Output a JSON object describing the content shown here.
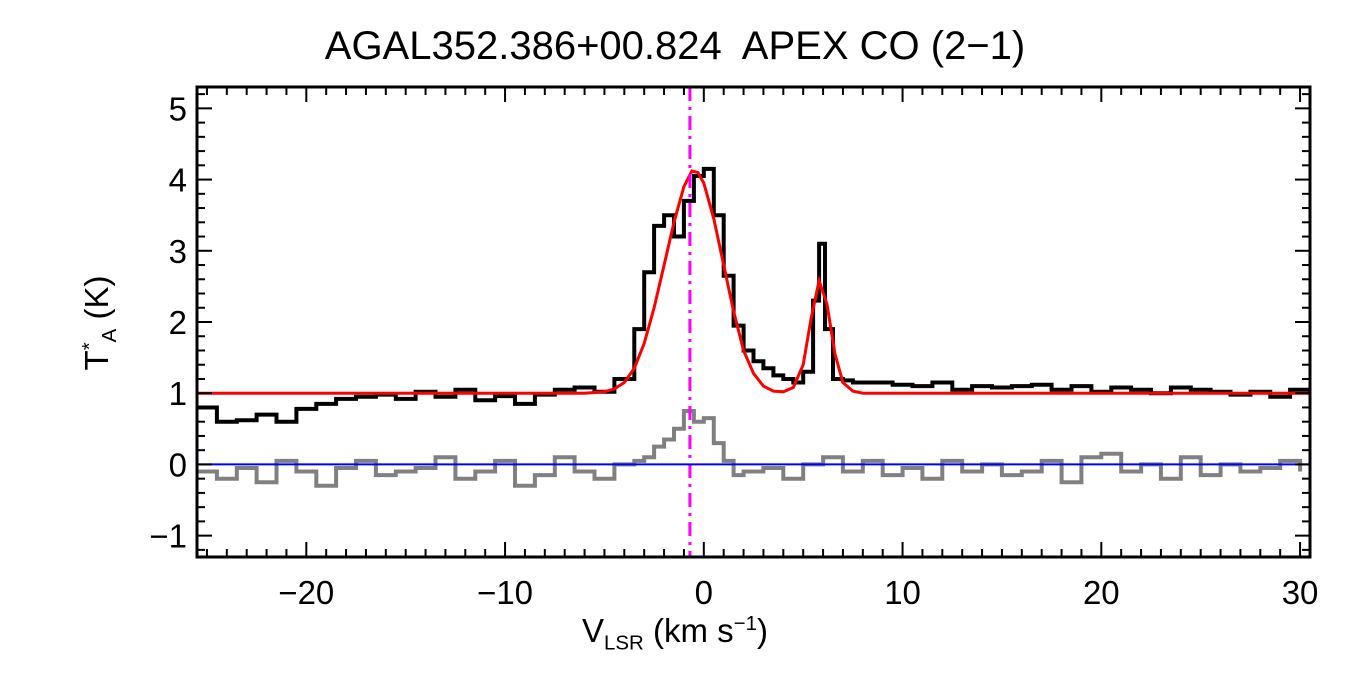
{
  "chart_data": {
    "type": "line",
    "title": "AGAL352.386+00.824  APEX CO (2−1)",
    "xlabel": {
      "main": "V",
      "sub": "LSR",
      "unit": " (km s",
      "sup": "−1",
      "close": ")"
    },
    "ylabel": {
      "main": "T",
      "sup": "*",
      "sub": "A",
      "unit": " (K)"
    },
    "xlim": [
      -25.5,
      30.5
    ],
    "ylim": [
      -1.3,
      5.3
    ],
    "xticks": [
      {
        "v": -20,
        "label": "−20"
      },
      {
        "v": -10,
        "label": "−10"
      },
      {
        "v": 0,
        "label": "0"
      },
      {
        "v": 10,
        "label": "10"
      },
      {
        "v": 20,
        "label": "20"
      },
      {
        "v": 30,
        "label": "30"
      }
    ],
    "yticks": [
      {
        "v": -1,
        "label": "−1"
      },
      {
        "v": 0,
        "label": "0"
      },
      {
        "v": 1,
        "label": "1"
      },
      {
        "v": 2,
        "label": "2"
      },
      {
        "v": 3,
        "label": "3"
      },
      {
        "v": 4,
        "label": "4"
      },
      {
        "v": 5,
        "label": "5"
      }
    ],
    "reference_lines": [
      {
        "orientation": "vertical",
        "x": -0.7,
        "style": "dash-dot",
        "color": "#ff00ff"
      },
      {
        "orientation": "horizontal",
        "y": 0,
        "style": "solid",
        "color": "#0000ff"
      }
    ],
    "series": [
      {
        "role": "observed spectrum (histogram)",
        "color": "#000000",
        "x": [
          -25.5,
          -24.5,
          -23.5,
          -22.5,
          -21.5,
          -20.5,
          -19.5,
          -18.5,
          -17.5,
          -16.5,
          -15.5,
          -14.5,
          -13.5,
          -12.5,
          -11.5,
          -10.5,
          -9.5,
          -8.5,
          -7.5,
          -6.5,
          -5.5,
          -4.5,
          -3.5,
          -3.0,
          -2.5,
          -2.0,
          -1.5,
          -1.0,
          -0.5,
          0.0,
          0.5,
          1.0,
          1.5,
          2.0,
          2.5,
          3.0,
          3.5,
          4.0,
          4.5,
          5.0,
          5.5,
          5.8,
          6.1,
          6.5,
          7.0,
          7.5,
          8.5,
          9.5,
          10.5,
          11.5,
          12.5,
          13.5,
          14.5,
          15.5,
          16.5,
          17.5,
          18.5,
          19.5,
          20.5,
          21.5,
          22.5,
          23.5,
          24.5,
          25.5,
          26.5,
          27.5,
          28.5,
          29.5,
          30.5
        ],
        "y": [
          0.8,
          0.6,
          0.62,
          0.7,
          0.6,
          0.78,
          0.85,
          0.92,
          0.95,
          0.98,
          0.92,
          1.02,
          0.95,
          1.05,
          0.9,
          0.96,
          0.85,
          0.98,
          1.05,
          1.08,
          1.02,
          1.2,
          1.9,
          2.7,
          3.35,
          3.5,
          3.2,
          3.7,
          4.05,
          4.15,
          3.5,
          2.65,
          1.95,
          1.6,
          1.45,
          1.35,
          1.25,
          1.2,
          1.15,
          1.3,
          2.3,
          3.1,
          1.9,
          1.2,
          1.18,
          1.15,
          1.15,
          1.12,
          1.1,
          1.15,
          1.05,
          1.1,
          1.08,
          1.1,
          1.12,
          1.05,
          1.1,
          1.02,
          1.08,
          1.05,
          1.0,
          1.08,
          1.05,
          1.02,
          0.98,
          1.02,
          0.95,
          1.05,
          1.0
        ]
      },
      {
        "role": "gaussian fit",
        "color": "#ff0000",
        "x": [
          -25.5,
          -20,
          -15,
          -10,
          -6,
          -5,
          -4.5,
          -4,
          -3.5,
          -3,
          -2.5,
          -2,
          -1.5,
          -1,
          -0.6,
          -0.3,
          0,
          0.5,
          1,
          1.5,
          2,
          2.5,
          3,
          3.5,
          4,
          4.5,
          5,
          5.4,
          5.8,
          6.2,
          6.6,
          7,
          7.5,
          8,
          10,
          15,
          20,
          25,
          30.5
        ],
        "y": [
          1.0,
          1.0,
          1.0,
          1.0,
          1.0,
          1.02,
          1.06,
          1.15,
          1.35,
          1.7,
          2.2,
          2.8,
          3.4,
          3.9,
          4.12,
          4.1,
          3.95,
          3.45,
          2.8,
          2.15,
          1.6,
          1.28,
          1.1,
          1.03,
          1.02,
          1.08,
          1.4,
          2.05,
          2.58,
          2.25,
          1.55,
          1.15,
          1.03,
          1.0,
          1.0,
          1.0,
          1.0,
          1.0,
          1.0
        ]
      },
      {
        "role": "residual (histogram)",
        "color": "#808080",
        "x": [
          -25.5,
          -24.5,
          -23.5,
          -22.5,
          -21.5,
          -20.5,
          -19.5,
          -18.5,
          -17.5,
          -16.5,
          -15.5,
          -14.5,
          -13.5,
          -12.5,
          -11.5,
          -10.5,
          -9.5,
          -8.5,
          -7.5,
          -6.5,
          -5.5,
          -4.5,
          -3.5,
          -3.0,
          -2.5,
          -2.0,
          -1.5,
          -1.0,
          -0.5,
          0.0,
          0.5,
          1.0,
          1.5,
          2.0,
          2.5,
          3.0,
          4.0,
          5.0,
          6.0,
          7.0,
          8.0,
          9.0,
          10.0,
          11.0,
          12.0,
          13.0,
          14.0,
          15.0,
          16.0,
          17.0,
          18.0,
          19.0,
          20.0,
          21.0,
          22.0,
          23.0,
          24.0,
          25.0,
          26.0,
          27.0,
          28.0,
          29.0,
          30.0
        ],
        "y": [
          -0.1,
          -0.2,
          -0.05,
          -0.25,
          0.05,
          -0.1,
          -0.3,
          -0.05,
          0.05,
          -0.15,
          -0.1,
          -0.05,
          0.1,
          -0.2,
          -0.1,
          0.05,
          -0.3,
          -0.15,
          0.1,
          -0.1,
          -0.2,
          0.0,
          0.05,
          0.1,
          0.25,
          0.35,
          0.5,
          0.75,
          0.6,
          0.65,
          0.3,
          0.05,
          -0.15,
          -0.1,
          -0.1,
          -0.05,
          -0.2,
          0.0,
          0.1,
          -0.1,
          0.05,
          -0.15,
          -0.05,
          -0.2,
          0.05,
          -0.1,
          0.0,
          -0.15,
          -0.1,
          0.05,
          -0.25,
          0.1,
          0.15,
          -0.1,
          0.0,
          -0.2,
          0.1,
          -0.15,
          0.0,
          -0.1,
          -0.05,
          0.05,
          -0.1
        ]
      }
    ]
  }
}
